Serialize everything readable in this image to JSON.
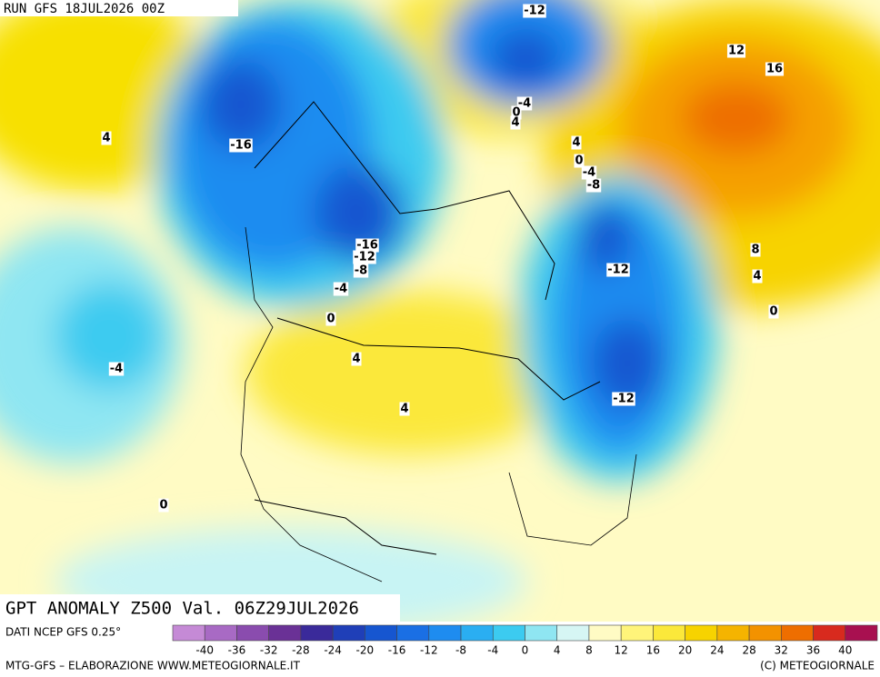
{
  "header": {
    "run": "RUN GFS 18JUL2026 00Z"
  },
  "map": {
    "contour_labels": [
      -12,
      12,
      16,
      4,
      -16,
      -4,
      0,
      4,
      4,
      0,
      -4,
      -8,
      -16,
      -12,
      -8,
      -4,
      -12,
      8,
      4,
      0,
      0,
      -4,
      4,
      4,
      -12,
      0
    ]
  },
  "footer": {
    "title": "GPT ANOMALY Z500 Val. 06Z29JUL2026",
    "source": "DATI NCEP GFS 0.25°",
    "credit_left": "MTG-GFS – ELABORAZIONE WWW.METEOGIORNALE.IT",
    "credit_right": "(C) METEOGIORNALE"
  },
  "colorbar": {
    "ticks": [
      -40,
      -36,
      -32,
      -28,
      -24,
      -20,
      -16,
      -12,
      -8,
      -4,
      0,
      4,
      8,
      12,
      16,
      20,
      24,
      28,
      32,
      36,
      40
    ],
    "colors": [
      "#c58ad6",
      "#a86ac4",
      "#8a4cae",
      "#6a3196",
      "#3a2a9a",
      "#1f3fb8",
      "#1656d0",
      "#1a6fe4",
      "#1e8cf0",
      "#2aaef2",
      "#3ccbf0",
      "#8fe6f2",
      "#d6f6f4",
      "#fffbc4",
      "#fff47a",
      "#fbe83a",
      "#f7d300",
      "#f5b400",
      "#f39200",
      "#ee6e00",
      "#d82a1e",
      "#a81050"
    ]
  }
}
